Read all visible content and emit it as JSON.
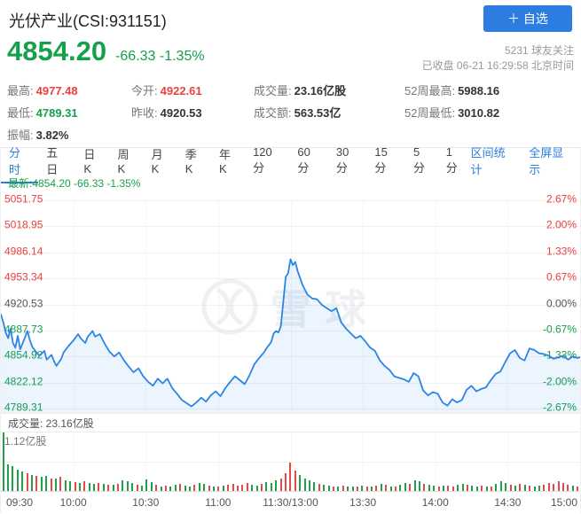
{
  "colors": {
    "green": "#16a04c",
    "red": "#eb4040",
    "blue": "#2d7de0",
    "line": "#2b85e4",
    "line_fill": "rgba(43,133,228,0.09)",
    "vol_green": "#21a049",
    "vol_red": "#e14b4b"
  },
  "header": {
    "title": "光伏产业(CSI:931151)",
    "follow_button": "＋ 自选",
    "price": "4854.20",
    "change": "-66.33 -1.35%",
    "followers": "5231 球友关注",
    "status_line": "已收盘 06-21 16:29:58 北京时间",
    "stats": [
      {
        "label": "最高:",
        "value": "4977.48",
        "color": "red"
      },
      {
        "label": "今开:",
        "value": "4922.61",
        "color": "red"
      },
      {
        "label": "成交量:",
        "value": "23.16亿股",
        "color": "dark"
      },
      {
        "label": "52周最高:",
        "value": "5988.16",
        "color": "dark"
      },
      {
        "label": "最低:",
        "value": "4789.31",
        "color": "green"
      },
      {
        "label": "昨收:",
        "value": "4920.53",
        "color": "dark"
      },
      {
        "label": "成交额:",
        "value": "563.53亿",
        "color": "dark"
      },
      {
        "label": "52周最低:",
        "value": "3010.82",
        "color": "dark"
      },
      {
        "label": "振幅:",
        "value": "3.82%",
        "color": "dark"
      }
    ]
  },
  "toolbar": {
    "tabs": [
      {
        "label": "分时",
        "active": true
      },
      {
        "label": "五日",
        "active": false
      },
      {
        "label": "日K",
        "active": false
      },
      {
        "label": "周K",
        "active": false
      },
      {
        "label": "月K",
        "active": false
      },
      {
        "label": "季K",
        "active": false
      },
      {
        "label": "年K",
        "active": false
      },
      {
        "label": "120分",
        "active": false
      },
      {
        "label": "60分",
        "active": false
      },
      {
        "label": "30分",
        "active": false
      },
      {
        "label": "15分",
        "active": false
      },
      {
        "label": "5分",
        "active": false
      },
      {
        "label": "1分",
        "active": false
      }
    ],
    "links": [
      "区间统计",
      "全屏显示"
    ]
  },
  "chart_data": {
    "type": "line",
    "title": "光伏产业(CSI:931151) 分时图",
    "latest_label": "最新:4854.20 -66.33 -1.35%",
    "legend_position": "none",
    "grid": true,
    "y_axis_price": [
      "5051.75",
      "5018.95",
      "4986.14",
      "4953.34",
      "4920.53",
      "4887.73",
      "4854.92",
      "4822.12",
      "4789.31"
    ],
    "y_axis_percent": [
      "2.67%",
      "2.00%",
      "1.33%",
      "0.67%",
      "0.00%",
      "-0.67%",
      "-1.33%",
      "-2.00%",
      "-2.67%"
    ],
    "x_ticks": [
      "09:30",
      "10:00",
      "10:30",
      "11:00",
      "11:30/13:00",
      "13:30",
      "14:00",
      "14:30",
      "15:00"
    ],
    "ylim": [
      4789.31,
      5051.75
    ],
    "prev_close": 4920.53,
    "minutes_total": 240,
    "points": [
      [
        0,
        4908
      ],
      [
        1,
        4898
      ],
      [
        2,
        4885
      ],
      [
        3,
        4878
      ],
      [
        4,
        4890
      ],
      [
        5,
        4872
      ],
      [
        6,
        4866
      ],
      [
        7,
        4881
      ],
      [
        8,
        4864
      ],
      [
        10,
        4879
      ],
      [
        11,
        4887
      ],
      [
        12,
        4876
      ],
      [
        13,
        4867
      ],
      [
        15,
        4859
      ],
      [
        16,
        4856
      ],
      [
        18,
        4862
      ],
      [
        19,
        4851
      ],
      [
        21,
        4857
      ],
      [
        22,
        4849
      ],
      [
        23,
        4843
      ],
      [
        25,
        4852
      ],
      [
        26,
        4860
      ],
      [
        28,
        4868
      ],
      [
        30,
        4875
      ],
      [
        32,
        4883
      ],
      [
        33,
        4878
      ],
      [
        35,
        4872
      ],
      [
        36,
        4880
      ],
      [
        38,
        4887
      ],
      [
        39,
        4880
      ],
      [
        41,
        4883
      ],
      [
        43,
        4871
      ],
      [
        45,
        4861
      ],
      [
        47,
        4855
      ],
      [
        49,
        4860
      ],
      [
        51,
        4850
      ],
      [
        53,
        4842
      ],
      [
        55,
        4835
      ],
      [
        57,
        4840
      ],
      [
        59,
        4830
      ],
      [
        61,
        4823
      ],
      [
        63,
        4818
      ],
      [
        65,
        4827
      ],
      [
        67,
        4821
      ],
      [
        69,
        4827
      ],
      [
        71,
        4815
      ],
      [
        73,
        4808
      ],
      [
        75,
        4800
      ],
      [
        77,
        4796
      ],
      [
        79,
        4792
      ],
      [
        81,
        4797
      ],
      [
        83,
        4803
      ],
      [
        85,
        4798
      ],
      [
        87,
        4806
      ],
      [
        89,
        4811
      ],
      [
        91,
        4805
      ],
      [
        93,
        4815
      ],
      [
        95,
        4823
      ],
      [
        97,
        4830
      ],
      [
        99,
        4825
      ],
      [
        101,
        4820
      ],
      [
        103,
        4831
      ],
      [
        105,
        4845
      ],
      [
        107,
        4853
      ],
      [
        109,
        4860
      ],
      [
        110,
        4865
      ],
      [
        112,
        4873
      ],
      [
        113,
        4884
      ],
      [
        114,
        4887
      ],
      [
        115,
        4885
      ],
      [
        116,
        4893
      ],
      [
        117,
        4923
      ],
      [
        118,
        4955
      ],
      [
        119,
        4960
      ],
      [
        120,
        4977.48
      ],
      [
        121,
        4970
      ],
      [
        122,
        4974
      ],
      [
        123,
        4962
      ],
      [
        125,
        4945
      ],
      [
        127,
        4933
      ],
      [
        129,
        4928
      ],
      [
        131,
        4927
      ],
      [
        133,
        4920
      ],
      [
        135,
        4916
      ],
      [
        137,
        4912
      ],
      [
        139,
        4916
      ],
      [
        141,
        4898
      ],
      [
        143,
        4890
      ],
      [
        145,
        4884
      ],
      [
        147,
        4878
      ],
      [
        149,
        4881
      ],
      [
        151,
        4874
      ],
      [
        153,
        4866
      ],
      [
        155,
        4862
      ],
      [
        157,
        4850
      ],
      [
        159,
        4843
      ],
      [
        161,
        4838
      ],
      [
        163,
        4830
      ],
      [
        165,
        4828
      ],
      [
        167,
        4826
      ],
      [
        169,
        4823
      ],
      [
        171,
        4834
      ],
      [
        173,
        4830
      ],
      [
        175,
        4812
      ],
      [
        177,
        4806
      ],
      [
        179,
        4810
      ],
      [
        181,
        4808
      ],
      [
        183,
        4797
      ],
      [
        185,
        4793
      ],
      [
        187,
        4801
      ],
      [
        189,
        4797
      ],
      [
        191,
        4800
      ],
      [
        193,
        4813
      ],
      [
        195,
        4818
      ],
      [
        197,
        4811
      ],
      [
        199,
        4814
      ],
      [
        201,
        4816
      ],
      [
        203,
        4825
      ],
      [
        205,
        4833
      ],
      [
        207,
        4836
      ],
      [
        209,
        4848
      ],
      [
        211,
        4859
      ],
      [
        213,
        4863
      ],
      [
        215,
        4853
      ],
      [
        217,
        4850
      ],
      [
        219,
        4865
      ],
      [
        221,
        4863
      ],
      [
        223,
        4859
      ],
      [
        225,
        4858
      ],
      [
        227,
        4856
      ],
      [
        229,
        4852
      ],
      [
        231,
        4854
      ],
      [
        233,
        4856
      ],
      [
        235,
        4851
      ],
      [
        237,
        4855
      ],
      [
        239,
        4853
      ],
      [
        240,
        4854.2
      ]
    ],
    "volume_pane": {
      "label": "成交量: 23.16亿股",
      "scale_max": "1.12亿股",
      "bars": "g100,g46,g42,g36,g33,r30,g28,r26,g24,g26,r22,g21,r24,g19,g17,r15,g14,r16,g13,g12,r14,g12,r11,g10,r12,g18,g16,g13,r10,g9,g20,g15,r10,g8,r9,g8,g10,r12,g9,g8,r10,g14,g12,r9,g8,r8,g9,r10,r12,r9,r11,r13,g10,g9,r12,g15,g13,g18,r22,r30,r48,r35,g28,g22,g18,g15,r12,g10,g9,r8,g8,r9,g8,g7,r8,g9,r7,g8,r9,g12,r10,g8,r7,g10,g14,r12,g18,g16,r12,g10,g9,r8,g9,r9,r8,g10,g12,r10,g9,g8,r9,g8,r8,g12,g16,g13,r10,g9,r12,g10,r9,g8,g9,r10,r14,r12,r16,r13,r10,g9,r8"
    },
    "watermark": "雪球"
  }
}
